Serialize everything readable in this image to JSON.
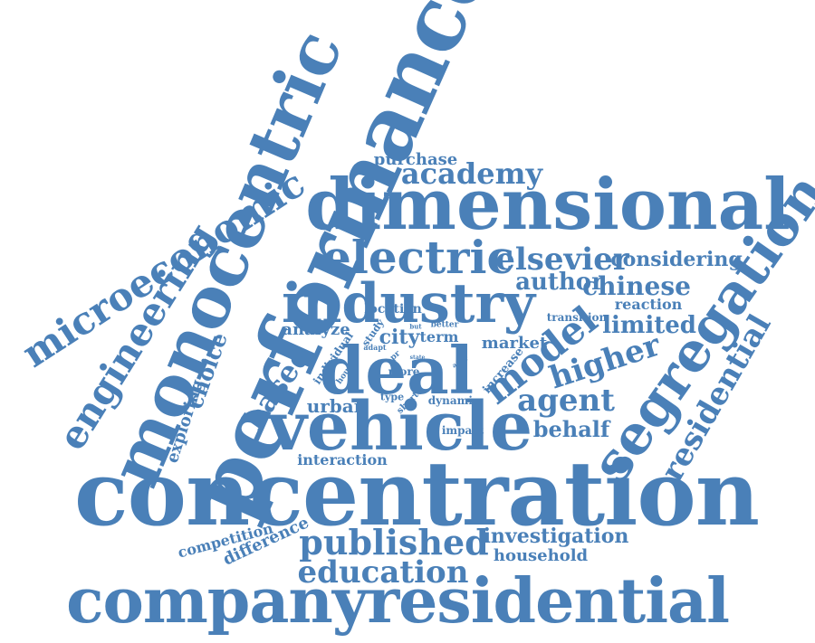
{
  "colors": {
    "word": "#4a80b8",
    "background": "#ffffff"
  },
  "words": [
    "performance",
    "monocentric",
    "microeconomic",
    "engineering",
    "dimensional",
    "academy",
    "purchase",
    "electric",
    "elsevier",
    "considering",
    "industry",
    "author",
    "chinese",
    "reaction",
    "segregation",
    "transition",
    "limited",
    "analyze",
    "study",
    "location",
    "better",
    "but",
    "city",
    "term",
    "market",
    "individual",
    "house",
    "pr",
    "more",
    "adapt",
    "state",
    "after",
    "increase",
    "deal",
    "model",
    "higher",
    "residential",
    "choice",
    "exploring",
    "based",
    "urban",
    "type",
    "short",
    "dynamic",
    "agent",
    "behalf",
    "vehicle",
    "impact",
    "interaction",
    "concentration",
    "competition",
    "difference",
    "published",
    "investigation",
    "household",
    "education",
    "companyresidential"
  ]
}
